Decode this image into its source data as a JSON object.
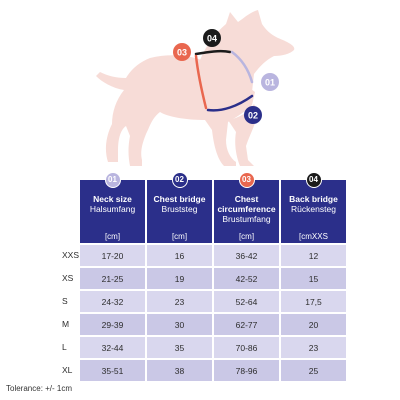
{
  "markers": [
    {
      "num": "01",
      "color": "#b9b5df"
    },
    {
      "num": "02",
      "color": "#2b2f8a"
    },
    {
      "num": "03",
      "color": "#e9674f"
    },
    {
      "num": "04",
      "color": "#1b1b1b"
    }
  ],
  "colors": {
    "dog": "#f7dcd7",
    "header": "#2b2f8a",
    "row_light": "#d9d7ee",
    "row_dark": "#cac8e6"
  },
  "table": {
    "columns": [
      {
        "num": "01",
        "title": "Neck size",
        "title2": "",
        "subtitle": "Halsumfang",
        "unit": "[cm]",
        "badge_color": "#b9b5df"
      },
      {
        "num": "02",
        "title": "Chest bridge",
        "title2": "",
        "subtitle": "Bruststeg",
        "unit": "[cm]",
        "badge_color": "#2b2f8a"
      },
      {
        "num": "03",
        "title": "Chest",
        "title2": "circumference",
        "subtitle": "Brustumfang",
        "unit": "[cm]",
        "badge_color": "#e9674f"
      },
      {
        "num": "04",
        "title": "Back bridge",
        "title2": "",
        "subtitle": "Rückensteg",
        "unit": "[cmXXS",
        "badge_color": "#1b1b1b"
      }
    ],
    "rows": [
      {
        "size": "XXS",
        "values": [
          "17-20",
          "16",
          "36-42",
          "12"
        ]
      },
      {
        "size": "XS",
        "values": [
          "21-25",
          "19",
          "42-52",
          "15"
        ]
      },
      {
        "size": "S",
        "values": [
          "24-32",
          "23",
          "52-64",
          "17,5"
        ]
      },
      {
        "size": "M",
        "values": [
          "29-39",
          "30",
          "62-77",
          "20"
        ]
      },
      {
        "size": "L",
        "values": [
          "32-44",
          "35",
          "70-86",
          "23"
        ]
      },
      {
        "size": "XL",
        "values": [
          "35-51",
          "38",
          "78-96",
          "25"
        ]
      }
    ]
  },
  "footnote": "Tolerance: +/- 1cm"
}
